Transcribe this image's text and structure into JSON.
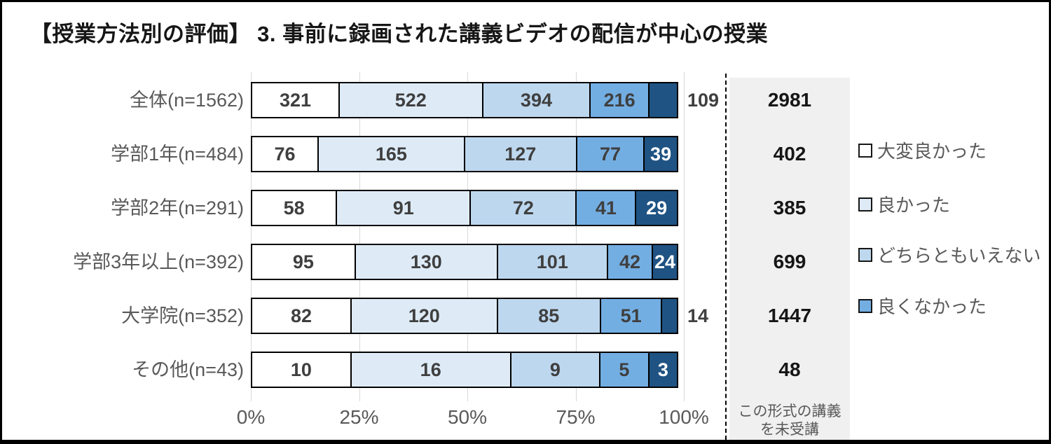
{
  "title": "【授業方法別の評価】 3. 事前に録画された講義ビデオの配信が中心の授業",
  "colors": {
    "series": [
      "#FFFFFF",
      "#DEEBF7",
      "#BDD7EE",
      "#73AEE3",
      "#1F5383"
    ],
    "segment_border": "#000000",
    "gridline": "#D9D9D9",
    "side_panel_bg": "#F0F0F0",
    "axis_text": "#595959",
    "value_text": "#3F3F3F",
    "total_text": "#161616"
  },
  "chart_data": {
    "type": "bar",
    "orientation": "horizontal",
    "stacked": true,
    "grid": true,
    "categories": [
      "全体(n=1562)",
      "学部1年(n=484)",
      "学部2年(n=291)",
      "学部3年以上(n=392)",
      "大学院(n=352)",
      "その他(n=43)"
    ],
    "series": [
      {
        "name": "大変良かった",
        "color": "#FFFFFF",
        "values": [
          321,
          76,
          58,
          95,
          82,
          10
        ]
      },
      {
        "name": "良かった",
        "color": "#DEEBF7",
        "values": [
          522,
          165,
          91,
          130,
          120,
          16
        ]
      },
      {
        "name": "どちらともいえない",
        "color": "#BDD7EE",
        "values": [
          394,
          127,
          72,
          101,
          85,
          9
        ]
      },
      {
        "name": "良くなかった",
        "color": "#73AEE3",
        "values": [
          216,
          77,
          41,
          42,
          51,
          5
        ]
      },
      {
        "name": "",
        "color": "#1F5383",
        "values": [
          109,
          39,
          29,
          24,
          14,
          3
        ]
      }
    ],
    "x_axis": {
      "ticks": [
        "0%",
        "25%",
        "50%",
        "75%",
        "100%"
      ],
      "range": [
        0,
        100
      ]
    },
    "legend": {
      "position": "right",
      "entries": [
        {
          "label": "大変良かった",
          "color": "#FFFFFF"
        },
        {
          "label": "良かった",
          "color": "#DEEBF7"
        },
        {
          "label": "どちらともいえない",
          "color": "#BDD7EE"
        },
        {
          "label": "良くなかった",
          "color": "#73AEE3"
        }
      ]
    },
    "side_column": {
      "values": [
        2981,
        402,
        385,
        699,
        1447,
        48
      ],
      "footer_label": "この形式の講義を未受講"
    }
  }
}
